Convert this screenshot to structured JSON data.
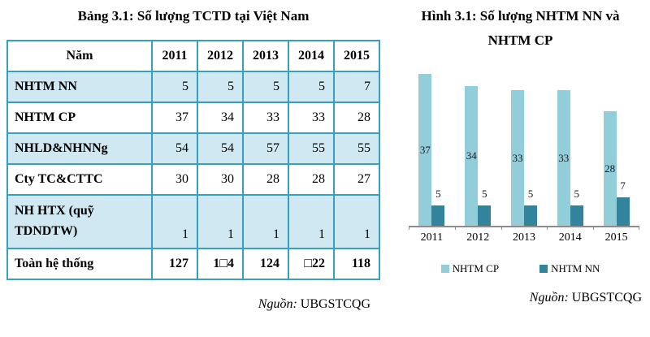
{
  "page": {
    "left_title": "Bảng 3.1: Số lượng TCTD tại Việt Nam",
    "right_title_line1": "Hình 3.1: Số lượng NHTM NN và",
    "right_title_line2": "NHTM CP",
    "left_source": {
      "label": "Nguồn:",
      "value": "UBGSTCQG"
    },
    "right_source": {
      "label": "Nguồn:",
      "value": "UBGSTCQG"
    }
  },
  "chart_data": [
    {
      "type": "table",
      "title": "Bảng 3.1: Số lượng TCTD tại Việt Nam",
      "columns": [
        "Năm",
        "2011",
        "2012",
        "2013",
        "2014",
        "2015"
      ],
      "rows": [
        {
          "label": "NHTM NN",
          "values": [
            "5",
            "5",
            "5",
            "5",
            "7"
          ]
        },
        {
          "label": "NHTM CP",
          "values": [
            "37",
            "34",
            "33",
            "33",
            "28"
          ]
        },
        {
          "label": "NHLD&NHNNg",
          "values": [
            "54",
            "54",
            "57",
            "55",
            "55"
          ]
        },
        {
          "label": "Cty TC&CTTC",
          "values": [
            "30",
            "30",
            "28",
            "28",
            "27"
          ]
        },
        {
          "label": "NH HTX (quỹ TDNDTW)",
          "values": [
            "1",
            "1",
            "1",
            "1",
            "1"
          ]
        },
        {
          "label": "Toàn hệ thống",
          "values": [
            "127",
            "1□4",
            "124",
            "□22",
            "118"
          ]
        }
      ],
      "source": "Nguồn: UBGSTCQG"
    },
    {
      "type": "bar",
      "title": "Hình 3.1: Số lượng NHTM NN và NHTM CP",
      "categories": [
        "2011",
        "2012",
        "2013",
        "2014",
        "2015"
      ],
      "series": [
        {
          "name": "NHTM CP",
          "values": [
            37,
            34,
            33,
            33,
            28
          ],
          "color": "#92cdda",
          "label_position": "inside-center"
        },
        {
          "name": "NHTM NN",
          "values": [
            5,
            5,
            5,
            5,
            7
          ],
          "color": "#31849b",
          "label_position": "outside-end"
        }
      ],
      "xlabel": "",
      "ylabel": "",
      "ylim": [
        0,
        38
      ],
      "grid": false,
      "legend_position": "bottom",
      "source": "Nguồn: UBGSTCQG"
    }
  ],
  "colors": {
    "table_border": "#35a0c5",
    "table_row_shade": "#cfe8f2",
    "bar_nhtm_cp": "#92cdda",
    "bar_nhtm_nn": "#31849b",
    "axis_line": "#8c8c8c"
  }
}
